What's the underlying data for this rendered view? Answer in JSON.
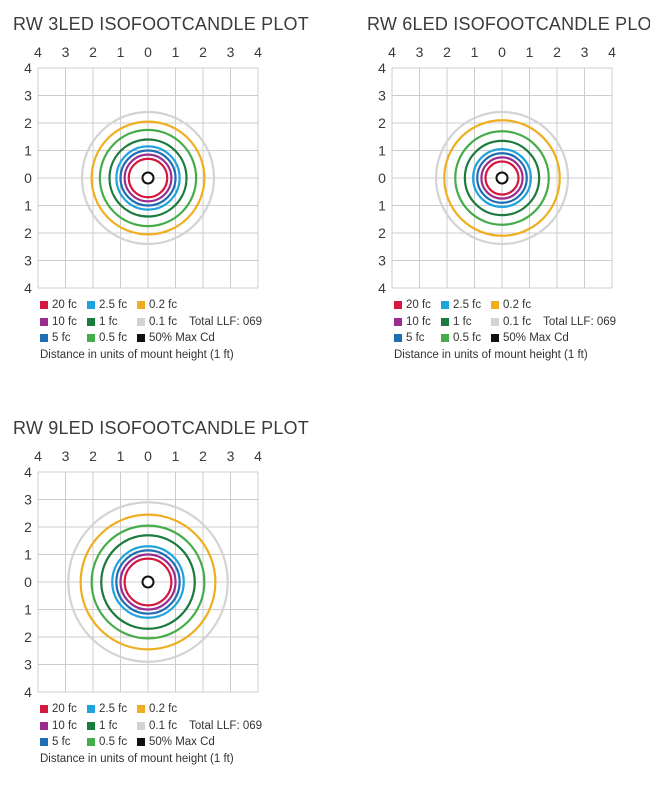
{
  "chart_data": [
    {
      "type": "isofootcandle",
      "title": "RW 3LED ISOFOOTCANDLE PLOT",
      "x_ticks": [
        "4",
        "3",
        "2",
        "1",
        "0",
        "1",
        "2",
        "3",
        "4"
      ],
      "y_ticks": [
        "4",
        "3",
        "2",
        "1",
        "0",
        "1",
        "2",
        "3",
        "4"
      ],
      "xlim": [
        -4,
        4
      ],
      "ylim": [
        -4,
        4
      ],
      "grid": true,
      "series": [
        {
          "name": "20 fc",
          "radius": 0.7
        },
        {
          "name": "10 fc",
          "radius": 0.85
        },
        {
          "name": "5 fc",
          "radius": 1.0
        },
        {
          "name": "2.5 fc",
          "radius": 1.15
        },
        {
          "name": "1 fc",
          "radius": 1.4
        },
        {
          "name": "0.5 fc",
          "radius": 1.75
        },
        {
          "name": "0.2 fc",
          "radius": 2.05
        },
        {
          "name": "0.1 fc",
          "radius": 2.4
        }
      ],
      "max_cd": {
        "name": "50% Max Cd",
        "radius": 0.2
      },
      "llf": "Total LLF: 069",
      "note": "Distance in units of mount height (1 ft)"
    },
    {
      "type": "isofootcandle",
      "title": "RW 6LED ISOFOOTCANDLE PLOT",
      "x_ticks": [
        "4",
        "3",
        "2",
        "1",
        "0",
        "1",
        "2",
        "3",
        "4"
      ],
      "y_ticks": [
        "4",
        "3",
        "2",
        "1",
        "0",
        "1",
        "2",
        "3",
        "4"
      ],
      "xlim": [
        -4,
        4
      ],
      "ylim": [
        -4,
        4
      ],
      "grid": true,
      "series": [
        {
          "name": "20 fc",
          "radius": 0.6
        },
        {
          "name": "10 fc",
          "radius": 0.75
        },
        {
          "name": "5 fc",
          "radius": 0.9
        },
        {
          "name": "2.5 fc",
          "radius": 1.05
        },
        {
          "name": "1 fc",
          "radius": 1.35
        },
        {
          "name": "0.5 fc",
          "radius": 1.7
        },
        {
          "name": "0.2 fc",
          "radius": 2.1
        },
        {
          "name": "0.1 fc",
          "radius": 2.4
        }
      ],
      "max_cd": {
        "name": "50% Max Cd",
        "radius": 0.2
      },
      "llf": "Total LLF: 069",
      "note": "Distance in units of mount height (1 ft)"
    },
    {
      "type": "isofootcandle",
      "title": "RW 9LED ISOFOOTCANDLE PLOT",
      "x_ticks": [
        "4",
        "3",
        "2",
        "1",
        "0",
        "1",
        "2",
        "3",
        "4"
      ],
      "y_ticks": [
        "4",
        "3",
        "2",
        "1",
        "0",
        "1",
        "2",
        "3",
        "4"
      ],
      "xlim": [
        -4,
        4
      ],
      "ylim": [
        -4,
        4
      ],
      "grid": true,
      "series": [
        {
          "name": "20 fc",
          "radius": 0.85
        },
        {
          "name": "10 fc",
          "radius": 1.0
        },
        {
          "name": "5 fc",
          "radius": 1.15
        },
        {
          "name": "2.5 fc",
          "radius": 1.3
        },
        {
          "name": "1 fc",
          "radius": 1.7
        },
        {
          "name": "0.5 fc",
          "radius": 2.05
        },
        {
          "name": "0.2 fc",
          "radius": 2.45
        },
        {
          "name": "0.1 fc",
          "radius": 2.9
        }
      ],
      "max_cd": {
        "name": "50% Max Cd",
        "radius": 0.2
      },
      "llf": "Total LLF: 069",
      "note": "Distance in units of mount height (1 ft)"
    }
  ],
  "colors": {
    "20 fc": "#d6173f",
    "10 fc": "#9b2d8e",
    "5 fc": "#1f6db3",
    "2.5 fc": "#1fa3dc",
    "1 fc": "#1b7a3e",
    "0.5 fc": "#46ac4a",
    "0.2 fc": "#efae1f",
    "0.1 fc": "#d3d3d3",
    "50% Max Cd": "#111111",
    "grid": "#cccccc",
    "text": "#3a3a3a"
  }
}
